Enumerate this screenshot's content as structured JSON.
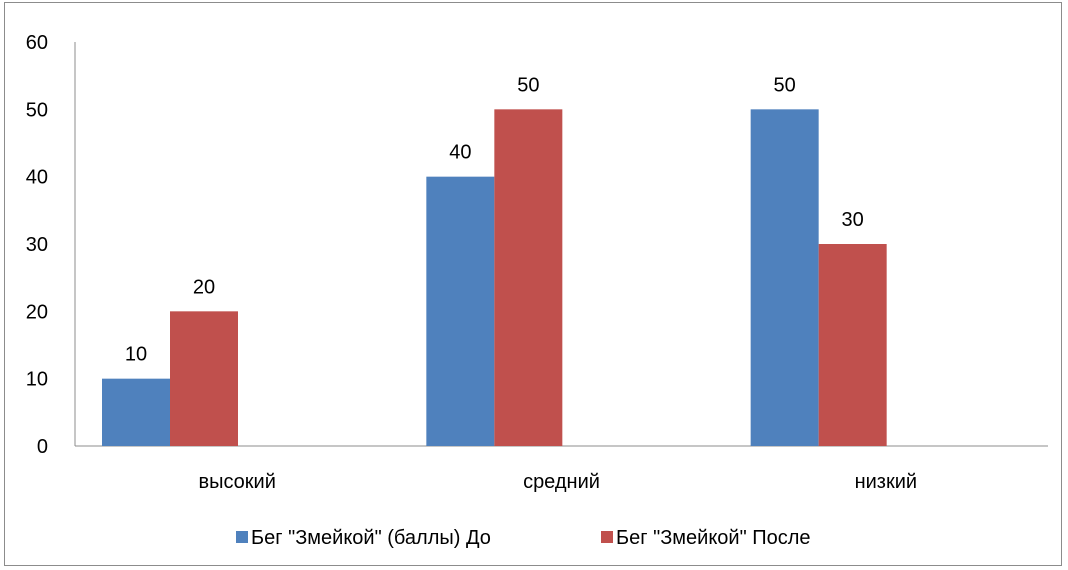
{
  "chart_data": {
    "type": "bar",
    "categories": [
      "высокий",
      "средний",
      "низкий"
    ],
    "series": [
      {
        "name": "Бег \"Змейкой\" (баллы) До",
        "values": [
          10,
          40,
          50
        ],
        "color": "#4F81BD"
      },
      {
        "name": "Бег \"Змейкой\" После",
        "values": [
          20,
          50,
          30
        ],
        "color": "#C0504D"
      }
    ],
    "ylim": [
      0,
      60
    ],
    "yticks": [
      0,
      10,
      20,
      30,
      40,
      50,
      60
    ],
    "data_labels": true,
    "grid": false,
    "legend_position": "bottom"
  }
}
